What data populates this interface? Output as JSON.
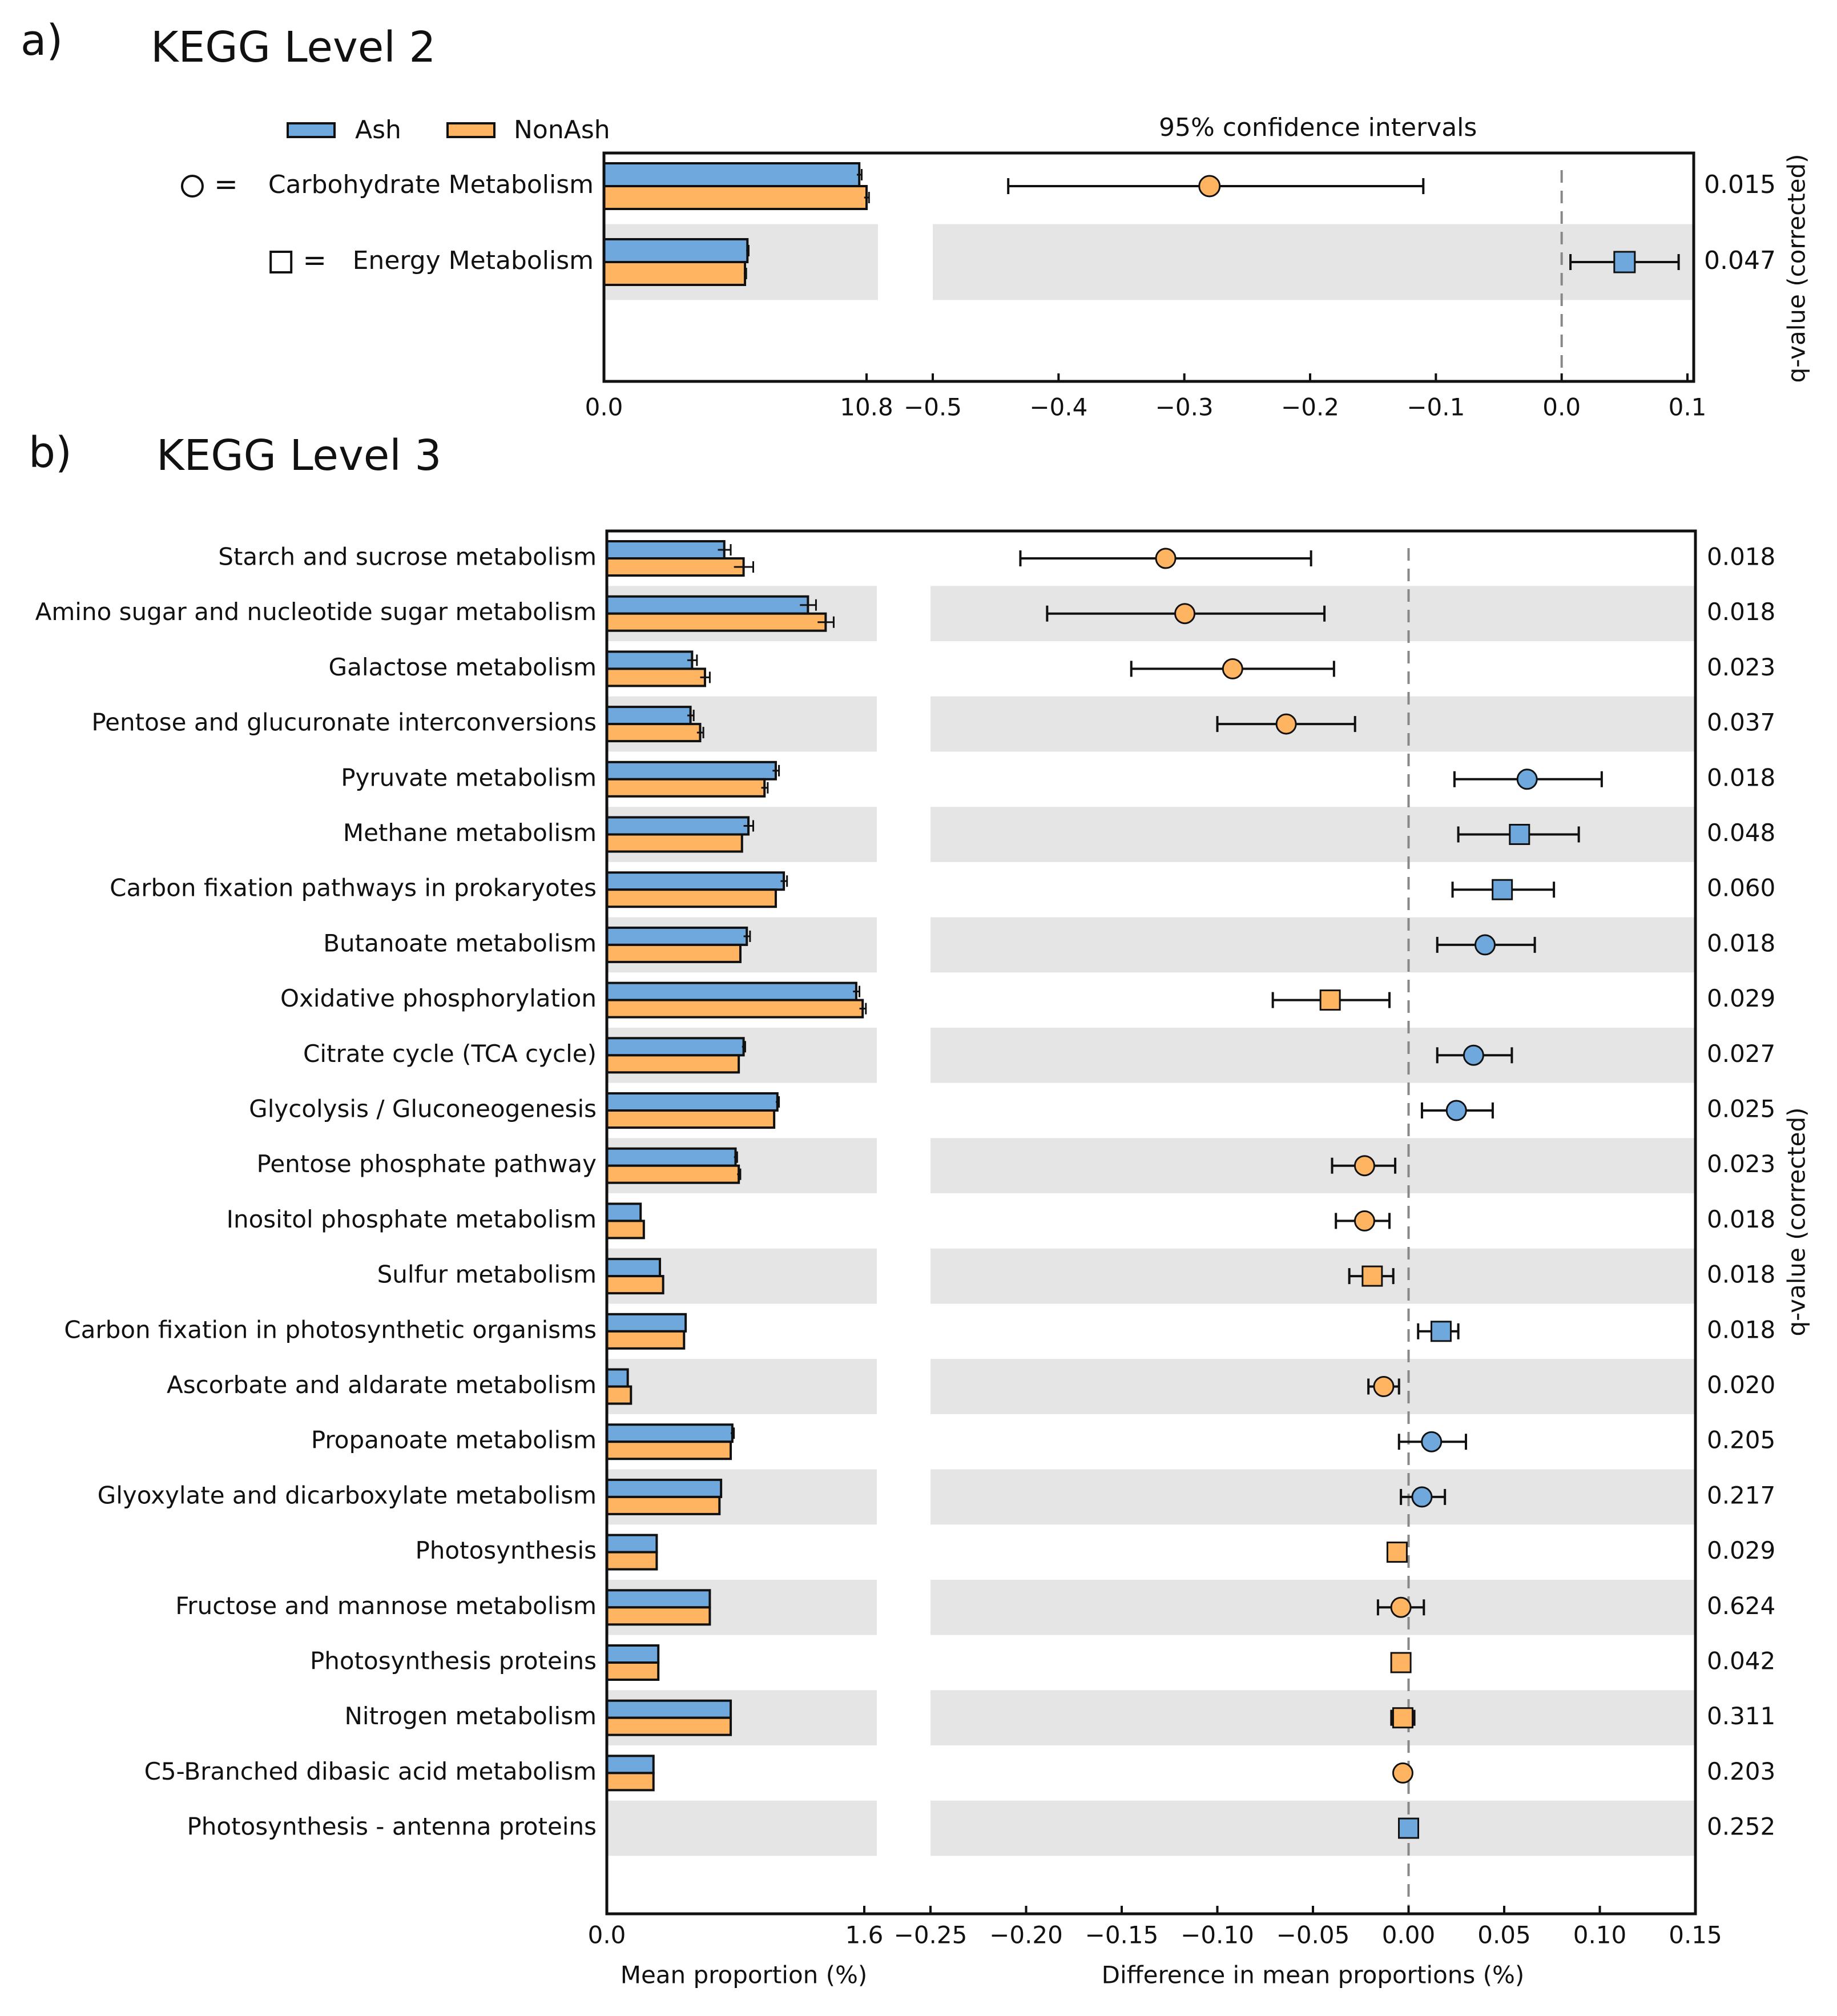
{
  "colors": {
    "ash": "#6fa8dc",
    "nonash": "#ffb462",
    "shade": "#e5e5e5",
    "axis": "#111111",
    "dash": "#888888"
  },
  "figure": {
    "a": {
      "letter": "a)",
      "title": "KEGG Level 2"
    },
    "b": {
      "letter": "b)",
      "title": "KEGG Level 3"
    }
  },
  "legend": {
    "ash": "Ash",
    "nonash": "NonAsh",
    "ci_label": "95% confidence intervals"
  },
  "chart_data": [
    {
      "type": "bar",
      "panel": "a",
      "title": "KEGG Level 2",
      "categories": [
        "Carbohydrate Metabolism",
        "Energy Metabolism"
      ],
      "category_marker_symbols": [
        "=",
        "="
      ],
      "series": [
        {
          "name": "Ash",
          "values": [
            10.5,
            5.9
          ],
          "err": [
            0.1,
            0.05
          ]
        },
        {
          "name": "NonAsh",
          "values": [
            10.8,
            5.8
          ],
          "err": [
            0.1,
            0.05
          ]
        }
      ],
      "xlabel": "Mean proportion (%)",
      "xlim": [
        0.0,
        10.8
      ],
      "xticks": [
        "0.0",
        "10.8"
      ],
      "difference": {
        "type": "scatter",
        "xlabel": "Difference in mean proportions (%)",
        "xlim": [
          -0.5,
          0.1
        ],
        "xticks": [
          "−0.5",
          "−0.4",
          "−0.3",
          "−0.2",
          "−0.1",
          "0.0",
          "0.1"
        ],
        "points": [
          {
            "value": -0.28,
            "ci_low": -0.44,
            "ci_high": -0.11,
            "marker": "circle",
            "color": "nonash"
          },
          {
            "value": 0.05,
            "ci_low": 0.007,
            "ci_high": 0.093,
            "marker": "square",
            "color": "ash"
          }
        ]
      },
      "q_label": "q-value (corrected)",
      "q_values": [
        "0.015",
        "0.047"
      ]
    },
    {
      "type": "bar",
      "panel": "b",
      "title": "KEGG Level 3",
      "categories": [
        "Starch and sucrose metabolism",
        "Amino sugar and nucleotide sugar metabolism",
        "Galactose metabolism",
        "Pentose and glucuronate interconversions",
        "Pyruvate metabolism",
        "Methane metabolism",
        "Carbon fixation pathways in prokaryotes",
        "Butanoate metabolism",
        "Oxidative phosphorylation",
        "Citrate cycle (TCA cycle)",
        "Glycolysis / Gluconeogenesis",
        "Pentose phosphate pathway",
        "Inositol phosphate metabolism",
        "Sulfur metabolism",
        "Carbon fixation in photosynthetic organisms",
        "Ascorbate and aldarate metabolism",
        "Propanoate metabolism",
        "Glyoxylate and dicarboxylate metabolism",
        "Photosynthesis",
        "Fructose and mannose metabolism",
        "Photosynthesis proteins",
        "Nitrogen metabolism",
        "C5-Branched dibasic acid metabolism",
        "Photosynthesis - antenna proteins"
      ],
      "series": [
        {
          "name": "Ash",
          "values": [
            0.73,
            1.25,
            0.53,
            0.52,
            1.05,
            0.88,
            1.1,
            0.87,
            1.55,
            0.85,
            1.06,
            0.8,
            0.21,
            0.33,
            0.49,
            0.13,
            0.78,
            0.71,
            0.31,
            0.64,
            0.32,
            0.77,
            0.29,
            0.0
          ],
          "err": [
            0.04,
            0.05,
            0.03,
            0.02,
            0.02,
            0.03,
            0.02,
            0.02,
            0.02,
            0.01,
            0.01,
            0.01,
            0.0,
            0.0,
            0.0,
            0.0,
            0.01,
            0.0,
            0.0,
            0.0,
            0.0,
            0.0,
            0.0,
            0.0
          ]
        },
        {
          "name": "NonAsh",
          "values": [
            0.85,
            1.36,
            0.61,
            0.58,
            0.98,
            0.84,
            1.05,
            0.83,
            1.59,
            0.82,
            1.04,
            0.82,
            0.23,
            0.35,
            0.48,
            0.15,
            0.77,
            0.7,
            0.31,
            0.64,
            0.32,
            0.77,
            0.29,
            0.0
          ],
          "err": [
            0.06,
            0.05,
            0.03,
            0.02,
            0.02,
            0.0,
            0.0,
            0.0,
            0.02,
            0.0,
            0.0,
            0.01,
            0.0,
            0.0,
            0.0,
            0.0,
            0.0,
            0.0,
            0.0,
            0.0,
            0.0,
            0.0,
            0.0,
            0.0
          ]
        }
      ],
      "xlabel": "Mean proportion (%)",
      "xlim": [
        0.0,
        1.6
      ],
      "xticks": [
        "0.0",
        "1.6"
      ],
      "difference": {
        "type": "scatter",
        "xlabel": "Difference in mean proportions (%)",
        "xlim": [
          -0.25,
          0.15
        ],
        "xticks": [
          "−0.25",
          "−0.20",
          "−0.15",
          "−0.10",
          "−0.05",
          "0.00",
          "0.05",
          "0.10",
          "0.15"
        ],
        "points": [
          {
            "value": -0.127,
            "ci_low": -0.203,
            "ci_high": -0.051,
            "marker": "circle",
            "color": "nonash"
          },
          {
            "value": -0.117,
            "ci_low": -0.189,
            "ci_high": -0.044,
            "marker": "circle",
            "color": "nonash"
          },
          {
            "value": -0.092,
            "ci_low": -0.145,
            "ci_high": -0.039,
            "marker": "circle",
            "color": "nonash"
          },
          {
            "value": -0.064,
            "ci_low": -0.1,
            "ci_high": -0.028,
            "marker": "circle",
            "color": "nonash"
          },
          {
            "value": 0.062,
            "ci_low": 0.024,
            "ci_high": 0.101,
            "marker": "circle",
            "color": "ash"
          },
          {
            "value": 0.058,
            "ci_low": 0.026,
            "ci_high": 0.089,
            "marker": "square",
            "color": "ash"
          },
          {
            "value": 0.049,
            "ci_low": 0.023,
            "ci_high": 0.076,
            "marker": "square",
            "color": "ash"
          },
          {
            "value": 0.04,
            "ci_low": 0.015,
            "ci_high": 0.066,
            "marker": "circle",
            "color": "ash"
          },
          {
            "value": -0.041,
            "ci_low": -0.071,
            "ci_high": -0.01,
            "marker": "square",
            "color": "nonash"
          },
          {
            "value": 0.034,
            "ci_low": 0.015,
            "ci_high": 0.054,
            "marker": "circle",
            "color": "ash"
          },
          {
            "value": 0.025,
            "ci_low": 0.007,
            "ci_high": 0.044,
            "marker": "circle",
            "color": "ash"
          },
          {
            "value": -0.023,
            "ci_low": -0.04,
            "ci_high": -0.007,
            "marker": "circle",
            "color": "nonash"
          },
          {
            "value": -0.023,
            "ci_low": -0.038,
            "ci_high": -0.01,
            "marker": "circle",
            "color": "nonash"
          },
          {
            "value": -0.019,
            "ci_low": -0.031,
            "ci_high": -0.008,
            "marker": "square",
            "color": "nonash"
          },
          {
            "value": 0.017,
            "ci_low": 0.005,
            "ci_high": 0.026,
            "marker": "square",
            "color": "ash"
          },
          {
            "value": -0.013,
            "ci_low": -0.021,
            "ci_high": -0.005,
            "marker": "circle",
            "color": "nonash"
          },
          {
            "value": 0.012,
            "ci_low": -0.005,
            "ci_high": 0.03,
            "marker": "circle",
            "color": "ash"
          },
          {
            "value": 0.007,
            "ci_low": -0.004,
            "ci_high": 0.019,
            "marker": "circle",
            "color": "ash"
          },
          {
            "value": -0.006,
            "ci_low": -0.008,
            "ci_high": -0.003,
            "marker": "square",
            "color": "nonash"
          },
          {
            "value": -0.004,
            "ci_low": -0.016,
            "ci_high": 0.008,
            "marker": "circle",
            "color": "nonash"
          },
          {
            "value": -0.004,
            "ci_low": -0.006,
            "ci_high": -0.002,
            "marker": "square",
            "color": "nonash"
          },
          {
            "value": -0.003,
            "ci_low": -0.009,
            "ci_high": 0.003,
            "marker": "square",
            "color": "nonash"
          },
          {
            "value": -0.003,
            "ci_low": -0.003,
            "ci_high": -0.003,
            "marker": "circle",
            "color": "nonash"
          },
          {
            "value": 0.0,
            "ci_low": 0.0,
            "ci_high": 0.0,
            "marker": "square",
            "color": "ash"
          }
        ]
      },
      "q_label": "q-value (corrected)",
      "q_values": [
        "0.018",
        "0.018",
        "0.023",
        "0.037",
        "0.018",
        "0.048",
        "0.060",
        "0.018",
        "0.029",
        "0.027",
        "0.025",
        "0.023",
        "0.018",
        "0.018",
        "0.018",
        "0.020",
        "0.205",
        "0.217",
        "0.029",
        "0.624",
        "0.042",
        "0.311",
        "0.203",
        "0.252"
      ]
    }
  ]
}
